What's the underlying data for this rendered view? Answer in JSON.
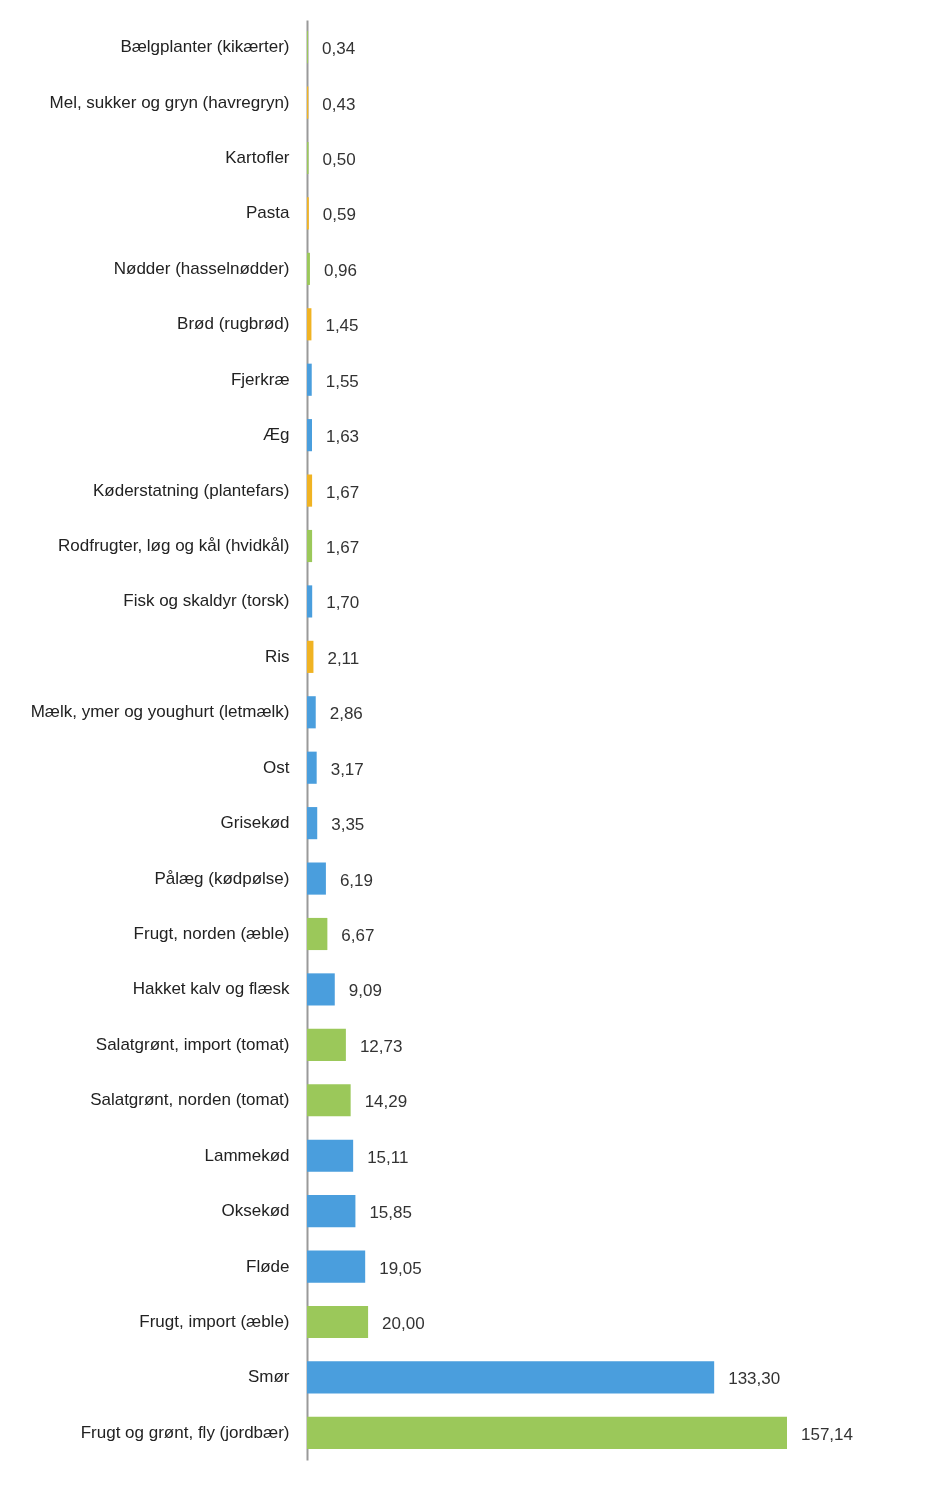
{
  "chart_data": {
    "type": "bar",
    "orientation": "horizontal",
    "tick_labels": "y",
    "xlim": [
      0,
      157.14
    ],
    "categories": [
      "Bælgplanter (kikærter)",
      "Mel, sukker og gryn (havregryn)",
      "Kartofler",
      "Pasta",
      "Nødder (hasselnødder)",
      "Brød (rugbrød)",
      "Fjerkræ",
      "Æg",
      "Køderstatning (plantefars)",
      "Rodfrugter, løg og kål (hvidkål)",
      "Fisk og skaldyr (torsk)",
      "Ris",
      "Mælk, ymer og youghurt (letmælk)",
      "Ost",
      "Grisekød",
      "Pålæg (kødpølse)",
      "Frugt, norden (æble)",
      "Hakket kalv og flæsk",
      "Salatgrønt, import (tomat)",
      "Salatgrønt, norden (tomat)",
      "Lammekød",
      "Oksekød",
      "Fløde",
      "Frugt, import (æble)",
      "Smør",
      "Frugt og grønt, fly (jordbær)"
    ],
    "values": [
      0.34,
      0.43,
      0.5,
      0.59,
      0.96,
      1.45,
      1.55,
      1.63,
      1.67,
      1.67,
      1.7,
      2.11,
      2.86,
      3.17,
      3.35,
      6.19,
      6.67,
      9.09,
      12.73,
      14.29,
      15.11,
      15.85,
      19.05,
      20.0,
      133.3,
      157.14
    ],
    "value_labels": [
      "0,34",
      "0,43",
      "0,50",
      "0,59",
      "0,96",
      "1,45",
      "1,55",
      "1,63",
      "1,67",
      "1,67",
      "1,70",
      "2,11",
      "2,86",
      "3,17",
      "3,35",
      "6,19",
      "6,67",
      "9,09",
      "12,73",
      "14,29",
      "15,11",
      "15,85",
      "19,05",
      "20,00",
      "133,30",
      "157,14"
    ],
    "colors": [
      "#9bc85a",
      "#f0b323",
      "#9bc85a",
      "#f0b323",
      "#9bc85a",
      "#f0b323",
      "#4a9edd",
      "#4a9edd",
      "#f0b323",
      "#9bc85a",
      "#4a9edd",
      "#f0b323",
      "#4a9edd",
      "#4a9edd",
      "#4a9edd",
      "#4a9edd",
      "#9bc85a",
      "#4a9edd",
      "#9bc85a",
      "#9bc85a",
      "#4a9edd",
      "#4a9edd",
      "#4a9edd",
      "#9bc85a",
      "#4a9edd",
      "#9bc85a"
    ]
  }
}
